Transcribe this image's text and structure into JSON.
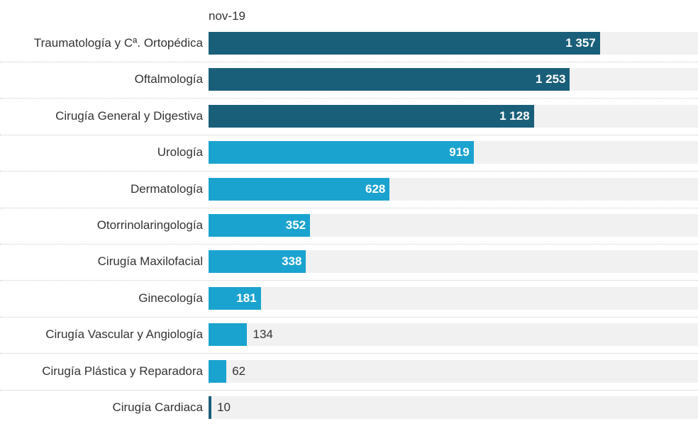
{
  "chart_data": {
    "type": "bar",
    "orientation": "horizontal",
    "series": [
      {
        "name": "nov-19",
        "values": [
          1357,
          1253,
          1128,
          919,
          628,
          352,
          338,
          181,
          134,
          62,
          10
        ]
      }
    ],
    "categories": [
      "Traumatología y Cª. Ortopédica",
      "Oftalmología",
      "Cirugía General y Digestiva",
      "Urología",
      "Dermatología",
      "Otorrinolaringología",
      "Cirugía Maxilofacial",
      "Ginecología",
      "Cirugía Vascular y Angiología",
      "Cirugía Plástica y Reparadora",
      "Cirugía Cardiaca"
    ],
    "value_labels": [
      "1 357",
      "1 253",
      "1 128",
      "919",
      "628",
      "352",
      "338",
      "181",
      "134",
      "62",
      "10"
    ],
    "bar_colors": [
      "#1a5f7a",
      "#1a5f7a",
      "#1a5f7a",
      "#1ba3cf",
      "#1ba3cf",
      "#1ba3cf",
      "#1ba3cf",
      "#1ba3cf",
      "#1ba3cf",
      "#1ba3cf",
      "#1a5f7a"
    ],
    "xlim": [
      0,
      1697
    ],
    "grid": false,
    "legend": "none"
  }
}
